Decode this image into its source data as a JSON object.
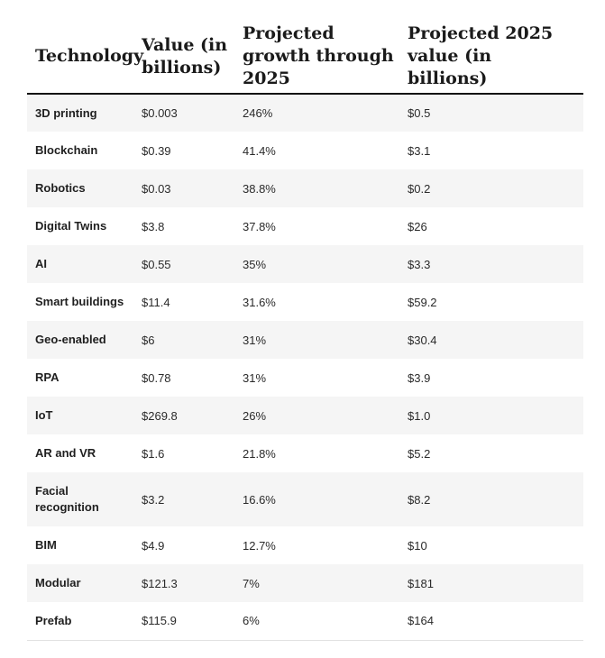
{
  "table": {
    "headers": [
      "Technology",
      "Value (in billions)",
      "Projected growth through 2025",
      "Projected 2025 value (in billions)"
    ],
    "rows": [
      {
        "technology": "3D printing",
        "value": "$0.003",
        "growth": "246%",
        "projected": "$0.5"
      },
      {
        "technology": "Blockchain",
        "value": "$0.39",
        "growth": "41.4%",
        "projected": "$3.1"
      },
      {
        "technology": "Robotics",
        "value": "$0.03",
        "growth": "38.8%",
        "projected": "$0.2"
      },
      {
        "technology": "Digital Twins",
        "value": "$3.8",
        "growth": "37.8%",
        "projected": "$26"
      },
      {
        "technology": "AI",
        "value": "$0.55",
        "growth": "35%",
        "projected": "$3.3"
      },
      {
        "technology": "Smart buildings",
        "value": "$11.4",
        "growth": "31.6%",
        "projected": "$59.2"
      },
      {
        "technology": "Geo-enabled",
        "value": "$6",
        "growth": "31%",
        "projected": "$30.4"
      },
      {
        "technology": "RPA",
        "value": "$0.78",
        "growth": "31%",
        "projected": "$3.9"
      },
      {
        "technology": "IoT",
        "value": "$269.8",
        "growth": "26%",
        "projected": "$1.0"
      },
      {
        "technology": "AR and VR",
        "value": "$1.6",
        "growth": "21.8%",
        "projected": "$5.2"
      },
      {
        "technology": "Facial recognition",
        "value": "$3.2",
        "growth": "16.6%",
        "projected": "$8.2"
      },
      {
        "technology": "BIM",
        "value": "$4.9",
        "growth": "12.7%",
        "projected": "$10"
      },
      {
        "technology": "Modular",
        "value": "$121.3",
        "growth": "7%",
        "projected": "$181"
      },
      {
        "technology": "Prefab",
        "value": "$115.9",
        "growth": "6%",
        "projected": "$164"
      }
    ]
  },
  "colors": {
    "stripe": "#f5f5f5",
    "header_rule": "#111111",
    "text": "#1a1a1a"
  }
}
